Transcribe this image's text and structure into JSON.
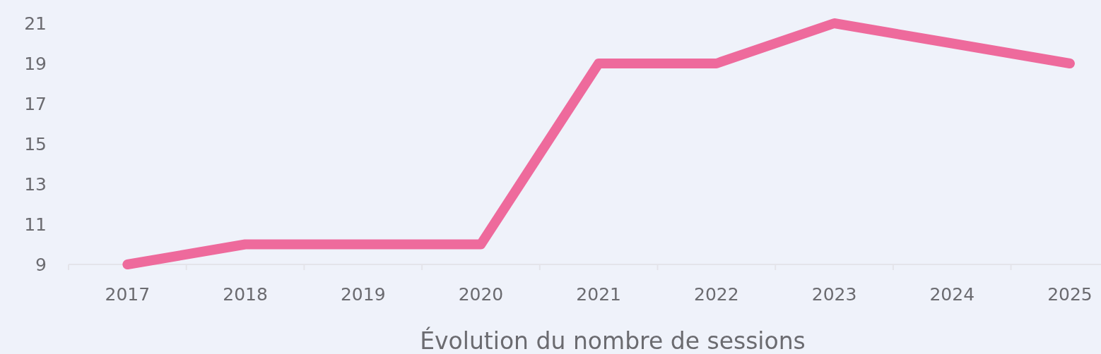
{
  "chart_data": {
    "type": "line",
    "xlabel": "Évolution du nombre de sessions",
    "categories": [
      "2017",
      "2018",
      "2019",
      "2020",
      "2021",
      "2022",
      "2023",
      "2024",
      "2025"
    ],
    "series": [
      {
        "color": "#ee6a9c",
        "values": [
          9,
          10,
          10,
          10,
          19,
          19,
          21,
          20,
          19
        ]
      }
    ],
    "ylim": [
      9,
      21
    ],
    "yticks": [
      9,
      11,
      13,
      15,
      17,
      19,
      21
    ],
    "grid": false,
    "line_style": "solid"
  }
}
